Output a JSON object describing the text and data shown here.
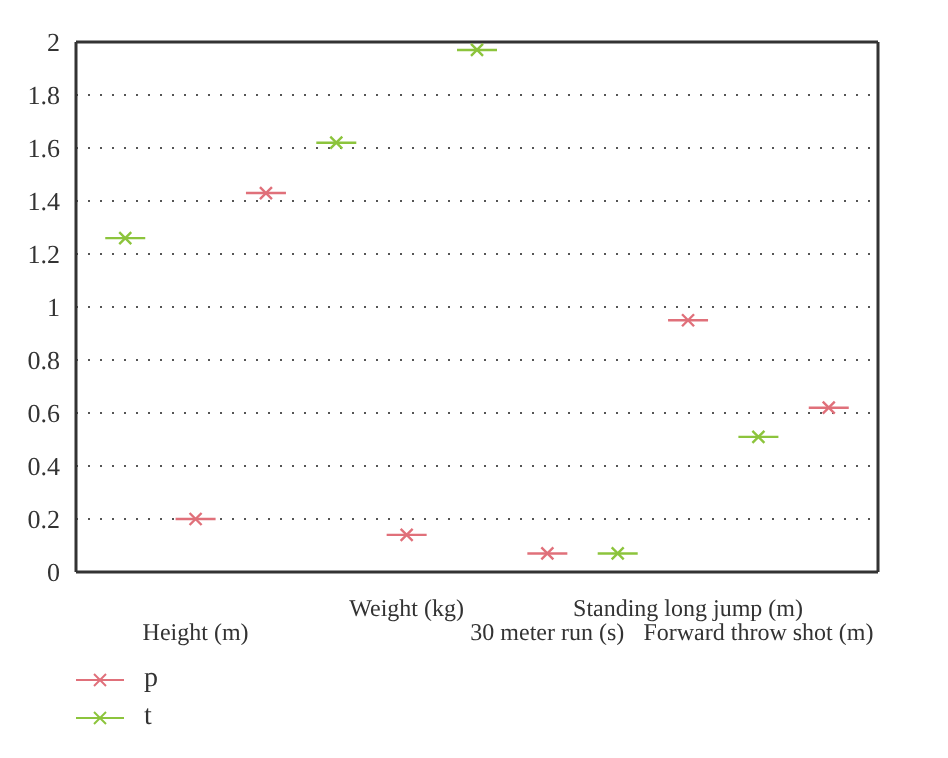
{
  "chart_data": {
    "type": "scatter",
    "categories": [
      null,
      "Height (m)",
      null,
      null,
      "Weight (kg)",
      null,
      "30 meter run (s)",
      null,
      "Standing long jump (m)",
      "Forward throw shot (m)",
      null
    ],
    "ylim": [
      0,
      2
    ],
    "yticks": [
      0,
      0.2,
      0.4,
      0.6,
      0.8,
      1,
      1.2,
      1.4,
      1.6,
      1.8,
      2
    ],
    "grid": "y",
    "legend": "bottom left",
    "marker": "cross",
    "series": [
      {
        "name": "p",
        "color": "#e0707a",
        "values": [
          null,
          0.2,
          1.43,
          null,
          0.14,
          null,
          0.07,
          null,
          0.95,
          null,
          0.62
        ]
      },
      {
        "name": "t",
        "color": "#8cc43c",
        "values": [
          1.26,
          null,
          null,
          1.62,
          null,
          1.97,
          null,
          0.07,
          null,
          0.51,
          null
        ]
      }
    ]
  }
}
